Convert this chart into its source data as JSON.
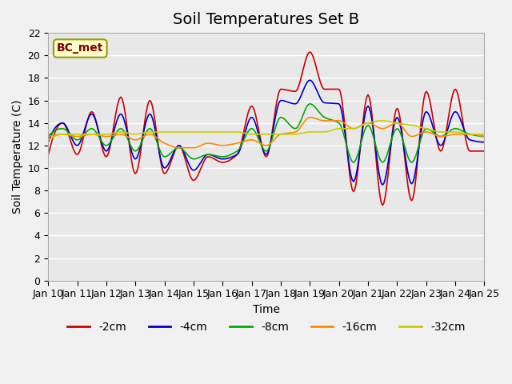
{
  "title": "Soil Temperatures Set B",
  "xlabel": "Time",
  "ylabel": "Soil Temperature (C)",
  "annotation": "BC_met",
  "ylim": [
    0,
    22
  ],
  "yticks": [
    0,
    2,
    4,
    6,
    8,
    10,
    12,
    14,
    16,
    18,
    20,
    22
  ],
  "xlim": [
    0,
    360
  ],
  "xtick_labels": [
    "Jan 10",
    "Jan 11",
    "Jan 12",
    "Jan 13",
    "Jan 14",
    "Jan 15",
    "Jan 16",
    "Jan 17",
    "Jan 18",
    "Jan 19",
    "Jan 20",
    "Jan 21",
    "Jan 22",
    "Jan 23",
    "Jan 24",
    "Jan 25"
  ],
  "xtick_positions": [
    0,
    24,
    48,
    72,
    96,
    120,
    144,
    168,
    192,
    216,
    240,
    264,
    288,
    312,
    336,
    360
  ],
  "series_colors": {
    "-2cm": "#cc0000",
    "-4cm": "#0000cc",
    "-8cm": "#00aa00",
    "-16cm": "#ff8800",
    "-32cm": "#cccc00"
  },
  "background_color": "#e8e8e8",
  "grid_color": "#ffffff",
  "annotation_bg": "#ffffcc",
  "annotation_text_color": "#800000",
  "title_fontsize": 14,
  "label_fontsize": 10,
  "tick_fontsize": 9,
  "ctrl_t": [
    0,
    12,
    24,
    36,
    48,
    60,
    72,
    84,
    96,
    108,
    120,
    132,
    144,
    156,
    168,
    180,
    192,
    204,
    216,
    228,
    240,
    252,
    264,
    276,
    288,
    300,
    312,
    324,
    336,
    348,
    360
  ],
  "ctrl_2cm": [
    11.1,
    14.0,
    11.2,
    15.0,
    11.0,
    16.3,
    9.5,
    16.0,
    9.5,
    12.0,
    8.9,
    11.0,
    10.5,
    11.2,
    15.5,
    11.0,
    17.0,
    16.8,
    20.3,
    17.0,
    17.0,
    7.9,
    16.5,
    6.7,
    15.3,
    7.1,
    16.8,
    11.5,
    17.0,
    11.5,
    11.5
  ],
  "ctrl_4cm": [
    12.3,
    14.0,
    12.0,
    14.8,
    11.5,
    14.8,
    10.8,
    14.8,
    10.0,
    12.0,
    9.8,
    11.2,
    10.8,
    11.2,
    14.5,
    11.2,
    16.0,
    15.7,
    17.8,
    15.8,
    15.7,
    8.8,
    15.5,
    8.5,
    14.5,
    8.6,
    15.0,
    12.0,
    15.0,
    12.5,
    12.3
  ],
  "ctrl_8cm": [
    12.8,
    13.5,
    12.5,
    13.5,
    12.0,
    13.5,
    11.5,
    13.5,
    11.0,
    11.8,
    10.8,
    11.2,
    11.0,
    11.5,
    13.5,
    11.5,
    14.5,
    13.5,
    15.7,
    14.5,
    14.0,
    10.5,
    13.8,
    10.5,
    13.5,
    10.5,
    13.5,
    12.8,
    13.5,
    13.0,
    12.8
  ],
  "ctrl_16cm": [
    12.8,
    13.0,
    12.8,
    13.0,
    12.8,
    13.0,
    12.5,
    13.0,
    12.2,
    11.8,
    11.8,
    12.2,
    12.0,
    12.2,
    12.5,
    12.0,
    13.0,
    13.2,
    14.5,
    14.2,
    14.2,
    13.5,
    14.0,
    13.5,
    14.0,
    12.8,
    13.2,
    12.8,
    13.0,
    13.0,
    12.8
  ],
  "ctrl_32cm": [
    12.5,
    13.0,
    13.0,
    13.0,
    13.0,
    13.2,
    13.0,
    13.2,
    13.2,
    13.2,
    13.2,
    13.2,
    13.2,
    13.2,
    13.0,
    13.0,
    13.0,
    13.0,
    13.2,
    13.2,
    13.5,
    13.5,
    14.0,
    14.2,
    14.0,
    13.8,
    13.5,
    13.2,
    13.2,
    13.0,
    13.0
  ]
}
